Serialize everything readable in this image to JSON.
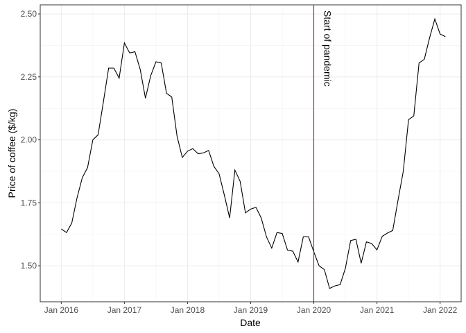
{
  "chart_data": {
    "type": "line",
    "x_label": "Date",
    "y_label": "Price of coffee ($/kg)",
    "x": [
      "2016-01",
      "2016-02",
      "2016-03",
      "2016-04",
      "2016-05",
      "2016-06",
      "2016-07",
      "2016-08",
      "2016-09",
      "2016-10",
      "2016-11",
      "2016-12",
      "2017-01",
      "2017-02",
      "2017-03",
      "2017-04",
      "2017-05",
      "2017-06",
      "2017-07",
      "2017-08",
      "2017-09",
      "2017-10",
      "2017-11",
      "2017-12",
      "2018-01",
      "2018-02",
      "2018-03",
      "2018-04",
      "2018-05",
      "2018-06",
      "2018-07",
      "2018-08",
      "2018-09",
      "2018-10",
      "2018-11",
      "2018-12",
      "2019-01",
      "2019-02",
      "2019-03",
      "2019-04",
      "2019-05",
      "2019-06",
      "2019-07",
      "2019-08",
      "2019-09",
      "2019-10",
      "2019-11",
      "2019-12",
      "2020-01",
      "2020-02",
      "2020-03",
      "2020-04",
      "2020-05",
      "2020-06",
      "2020-07",
      "2020-08",
      "2020-09",
      "2020-10",
      "2020-11",
      "2020-12",
      "2021-01",
      "2021-02",
      "2021-03",
      "2021-04",
      "2021-05",
      "2021-06",
      "2021-07",
      "2021-08",
      "2021-09",
      "2021-10",
      "2021-11",
      "2021-12",
      "2022-01",
      "2022-02"
    ],
    "series": [
      {
        "name": "Price",
        "color": "#000000",
        "values": [
          1.646,
          1.632,
          1.67,
          1.77,
          1.85,
          1.89,
          2.0,
          2.02,
          2.15,
          2.285,
          2.285,
          2.245,
          2.385,
          2.345,
          2.35,
          2.28,
          2.165,
          2.255,
          2.31,
          2.305,
          2.185,
          2.17,
          2.015,
          1.93,
          1.955,
          1.965,
          1.945,
          1.948,
          1.958,
          1.895,
          1.865,
          1.78,
          1.69,
          1.88,
          1.835,
          1.71,
          1.725,
          1.732,
          1.69,
          1.615,
          1.57,
          1.632,
          1.628,
          1.562,
          1.558,
          1.515,
          1.615,
          1.615,
          1.555,
          1.5,
          1.485,
          1.41,
          1.42,
          1.425,
          1.49,
          1.6,
          1.605,
          1.51,
          1.595,
          1.588,
          1.563,
          1.617,
          1.63,
          1.64,
          1.76,
          1.875,
          2.08,
          2.095,
          2.305,
          2.32,
          2.405,
          2.48,
          2.42,
          2.41
        ]
      }
    ],
    "xlim": [
      "2015-09",
      "2022-05"
    ],
    "xticks": [
      {
        "value": "2016-01",
        "label": "Jan 2016"
      },
      {
        "value": "2017-01",
        "label": "Jan 2017"
      },
      {
        "value": "2018-01",
        "label": "Jan 2018"
      },
      {
        "value": "2019-01",
        "label": "Jan 2019"
      },
      {
        "value": "2020-01",
        "label": "Jan 2020"
      },
      {
        "value": "2021-01",
        "label": "Jan 2021"
      },
      {
        "value": "2022-01",
        "label": "Jan 2022"
      }
    ],
    "ylim": [
      1.357,
      2.536
    ],
    "yticks": [
      {
        "value": 1.5,
        "label": "1.50"
      },
      {
        "value": 1.75,
        "label": "1.75"
      },
      {
        "value": 2.0,
        "label": "2.00"
      },
      {
        "value": 2.25,
        "label": "2.25"
      },
      {
        "value": 2.5,
        "label": "2.50"
      }
    ],
    "grid": true,
    "vline": {
      "x": "2020-01",
      "label": "Start of pandemic",
      "color": "#cc0000"
    }
  }
}
